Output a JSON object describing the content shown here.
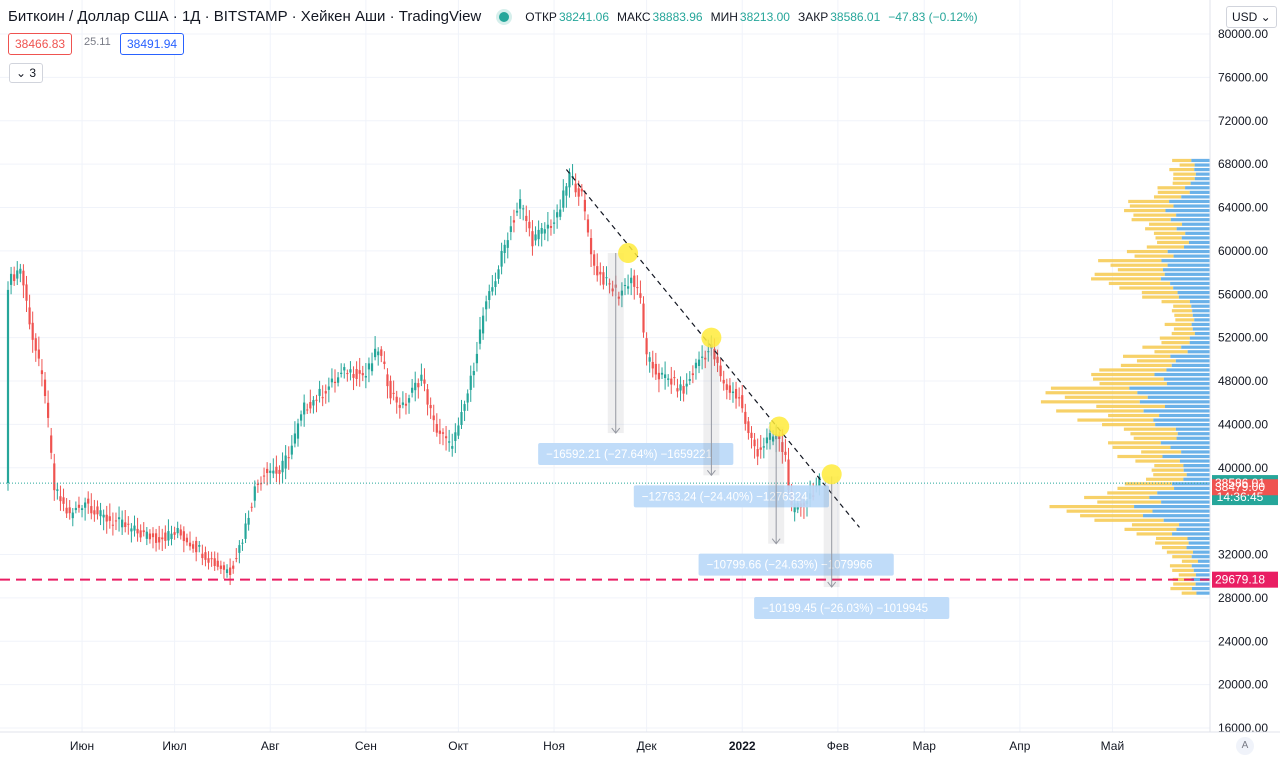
{
  "header": {
    "title": "Биткоин / Доллар США · 1Д · BITSTAMP · Хейкен Аши · TradingView",
    "open_label": "ОТКР",
    "open": "38241.06",
    "high_label": "МАКС",
    "high": "38883.96",
    "low_label": "МИН",
    "low": "38213.00",
    "close_label": "ЗАКР",
    "close": "38586.01",
    "change": "−47.83 (−0.12%)"
  },
  "trade": {
    "sell": "38466.83",
    "spread": "25.11",
    "buy": "38491.94"
  },
  "indicators_toggle": "3",
  "currency": "USD",
  "auto_button": "A",
  "colors": {
    "up": "#26a69a",
    "down": "#ef5350",
    "support": "#e91e63",
    "volume_up": "#5aa9e6",
    "volume_down": "#f6c94e",
    "highlight": "#ffeb3b"
  },
  "chart_data": {
    "type": "candlestick",
    "y_range": [
      16000,
      80000
    ],
    "y_ticks": [
      "80000.00",
      "76000.00",
      "72000.00",
      "68000.00",
      "64000.00",
      "60000.00",
      "56000.00",
      "52000.00",
      "48000.00",
      "44000.00",
      "40000.00",
      "32000.00",
      "28000.00",
      "24000.00",
      "20000.00",
      "16000.00"
    ],
    "x_labels": [
      {
        "label": "Июн",
        "day": 24
      },
      {
        "label": "Июл",
        "day": 54
      },
      {
        "label": "Авг",
        "day": 85
      },
      {
        "label": "Сен",
        "day": 116
      },
      {
        "label": "Окт",
        "day": 146
      },
      {
        "label": "Ноя",
        "day": 177
      },
      {
        "label": "Дек",
        "day": 207
      },
      {
        "label": "2022",
        "day": 238
      },
      {
        "label": "Фев",
        "day": 269
      },
      {
        "label": "Мар",
        "day": 297
      },
      {
        "label": "Апр",
        "day": 328
      },
      {
        "label": "Май",
        "day": 358
      }
    ],
    "price_path": [
      [
        0,
        57000
      ],
      [
        4,
        58500
      ],
      [
        8,
        52000
      ],
      [
        12,
        47000
      ],
      [
        15,
        38000
      ],
      [
        20,
        35500
      ],
      [
        25,
        37000
      ],
      [
        30,
        35500
      ],
      [
        35,
        35000
      ],
      [
        42,
        34000
      ],
      [
        48,
        33500
      ],
      [
        55,
        34000
      ],
      [
        62,
        32500
      ],
      [
        68,
        31000
      ],
      [
        72,
        30500
      ],
      [
        76,
        33500
      ],
      [
        80,
        38000
      ],
      [
        84,
        40000
      ],
      [
        88,
        39500
      ],
      [
        92,
        42000
      ],
      [
        96,
        45500
      ],
      [
        100,
        46500
      ],
      [
        106,
        48000
      ],
      [
        110,
        49000
      ],
      [
        116,
        48500
      ],
      [
        120,
        51000
      ],
      [
        124,
        47000
      ],
      [
        128,
        45500
      ],
      [
        134,
        48500
      ],
      [
        138,
        44000
      ],
      [
        143,
        42000
      ],
      [
        146,
        43500
      ],
      [
        150,
        48000
      ],
      [
        154,
        54000
      ],
      [
        158,
        57500
      ],
      [
        162,
        61500
      ],
      [
        166,
        64500
      ],
      [
        170,
        61000
      ],
      [
        174,
        62000
      ],
      [
        178,
        63000
      ],
      [
        182,
        67000
      ],
      [
        186,
        65000
      ],
      [
        190,
        58500
      ],
      [
        194,
        57000
      ],
      [
        198,
        56000
      ],
      [
        202,
        57500
      ],
      [
        205,
        55500
      ],
      [
        207,
        50000
      ],
      [
        211,
        48500
      ],
      [
        215,
        48000
      ],
      [
        219,
        47000
      ],
      [
        224,
        50000
      ],
      [
        228,
        51000
      ],
      [
        232,
        47500
      ],
      [
        237,
        46500
      ],
      [
        240,
        43000
      ],
      [
        243,
        41500
      ],
      [
        246,
        42500
      ],
      [
        249,
        43000
      ],
      [
        252,
        41000
      ],
      [
        254,
        36000
      ],
      [
        257,
        36500
      ],
      [
        260,
        37500
      ],
      [
        263,
        38600
      ]
    ],
    "current_price": "38586.01",
    "countdown": "14:36:45",
    "last_price_tag": "38479.00",
    "support_level": 29679.18,
    "support_label": "29679.18",
    "trendline": {
      "from": [
        181,
        67500
      ],
      "to": [
        276,
        34500
      ]
    },
    "touch_points": [
      [
        201,
        59800
      ],
      [
        228,
        52000
      ],
      [
        250,
        43800
      ],
      [
        267,
        39400
      ]
    ],
    "measures": [
      {
        "day": 197,
        "from": 59800,
        "to": 43200,
        "text": "−16592.21 (−27.64%) −1659221"
      },
      {
        "day": 228,
        "from": 52000,
        "to": 39300,
        "text": "−12763.24 (−24.40%) −1276324"
      },
      {
        "day": 249,
        "from": 43800,
        "to": 33000,
        "text": "−10799.66 (−24.63%) −1079966"
      },
      {
        "day": 267,
        "from": 39200,
        "to": 29000,
        "text": "−10199.45 (−26.03%) −1019945"
      }
    ]
  }
}
